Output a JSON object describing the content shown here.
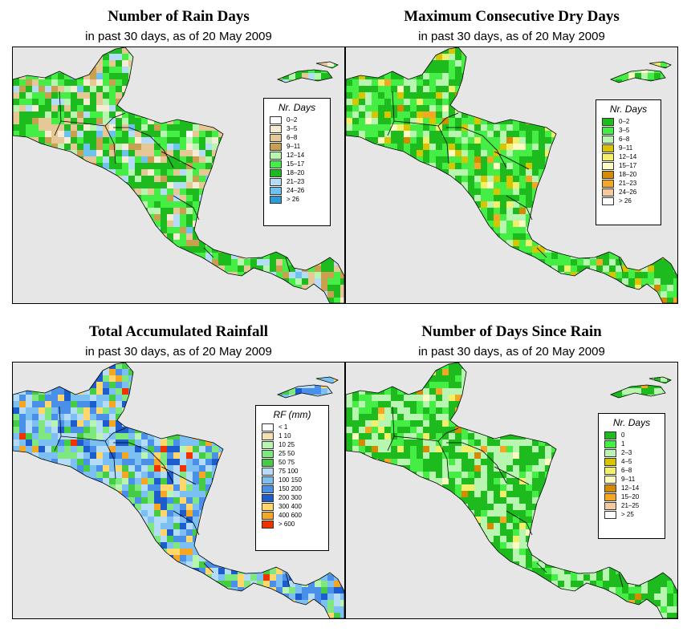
{
  "panels": [
    {
      "id": "rain-days",
      "title": "Number of Rain Days",
      "subtitle": "in past 30 days, as of  20 May 2009",
      "legend": {
        "title": "Nr. Days",
        "items": [
          {
            "label": "0–2",
            "color": "#ffffff"
          },
          {
            "label": "3–5",
            "color": "#f5ecd3"
          },
          {
            "label": "6–8",
            "color": "#e6c796"
          },
          {
            "label": "9–11",
            "color": "#c9a050"
          },
          {
            "label": "12–14",
            "color": "#b8f5b0"
          },
          {
            "label": "15–17",
            "color": "#44ee44"
          },
          {
            "label": "18–20",
            "color": "#1dbb1d"
          },
          {
            "label": "21–23",
            "color": "#b4dcf7"
          },
          {
            "label": "24–26",
            "color": "#6ec2f0"
          },
          {
            "label": "> 26",
            "color": "#2d9bd8"
          }
        ]
      }
    },
    {
      "id": "max-dry-days",
      "title": "Maximum Consecutive Dry Days",
      "subtitle": "in past 30 days, as of  20 May 2009",
      "legend": {
        "title": "Nr. Days",
        "items": [
          {
            "label": "0–2",
            "color": "#1dbb1d"
          },
          {
            "label": "3–5",
            "color": "#44ee44"
          },
          {
            "label": "6–8",
            "color": "#b8f5b0"
          },
          {
            "label": "9–11",
            "color": "#d9c400"
          },
          {
            "label": "12–14",
            "color": "#f3ef6a"
          },
          {
            "label": "15–17",
            "color": "#fdfac2"
          },
          {
            "label": "18–20",
            "color": "#d68a00"
          },
          {
            "label": "21–23",
            "color": "#f5a623"
          },
          {
            "label": "24–26",
            "color": "#f5c9a0"
          },
          {
            "label": "> 26",
            "color": "#ffffff"
          }
        ]
      }
    },
    {
      "id": "total-rainfall",
      "title": "Total Accumulated Rainfall",
      "subtitle": "in past 30 days, as of  20 May 2009",
      "legend": {
        "title": "RF (mm)",
        "items": [
          {
            "label": "< 1",
            "color": "#ffffff"
          },
          {
            "label": "1  10",
            "color": "#f3dfb4"
          },
          {
            "label": "10  25",
            "color": "#b8f5b0"
          },
          {
            "label": "25  50",
            "color": "#7ee87e"
          },
          {
            "label": "50  75",
            "color": "#44cc44"
          },
          {
            "label": "75  100",
            "color": "#b4dcf7"
          },
          {
            "label": "100  150",
            "color": "#7cc0f3"
          },
          {
            "label": "150  200",
            "color": "#4a90e8"
          },
          {
            "label": "200  300",
            "color": "#1c5ccc"
          },
          {
            "label": "300  400",
            "color": "#ffd76a"
          },
          {
            "label": "400  600",
            "color": "#f5a623"
          },
          {
            "label": "> 600",
            "color": "#ee3300"
          }
        ]
      }
    },
    {
      "id": "days-since-rain",
      "title": "Number of Days Since Rain",
      "subtitle": "in past 30 days, as of  20 May 2009",
      "legend": {
        "title": "Nr. Days",
        "items": [
          {
            "label": "0",
            "color": "#1dbb1d"
          },
          {
            "label": "1",
            "color": "#44ee44"
          },
          {
            "label": "2–3",
            "color": "#b8f5b0"
          },
          {
            "label": "4–5",
            "color": "#d9c400"
          },
          {
            "label": "6–8",
            "color": "#f3ef6a"
          },
          {
            "label": "9–11",
            "color": "#fdfac2"
          },
          {
            "label": "12–14",
            "color": "#d68a00"
          },
          {
            "label": "15–20",
            "color": "#f5a623"
          },
          {
            "label": "21–25",
            "color": "#f5c9a0"
          },
          {
            "label": "> 25",
            "color": "#ffffff"
          }
        ]
      }
    }
  ]
}
